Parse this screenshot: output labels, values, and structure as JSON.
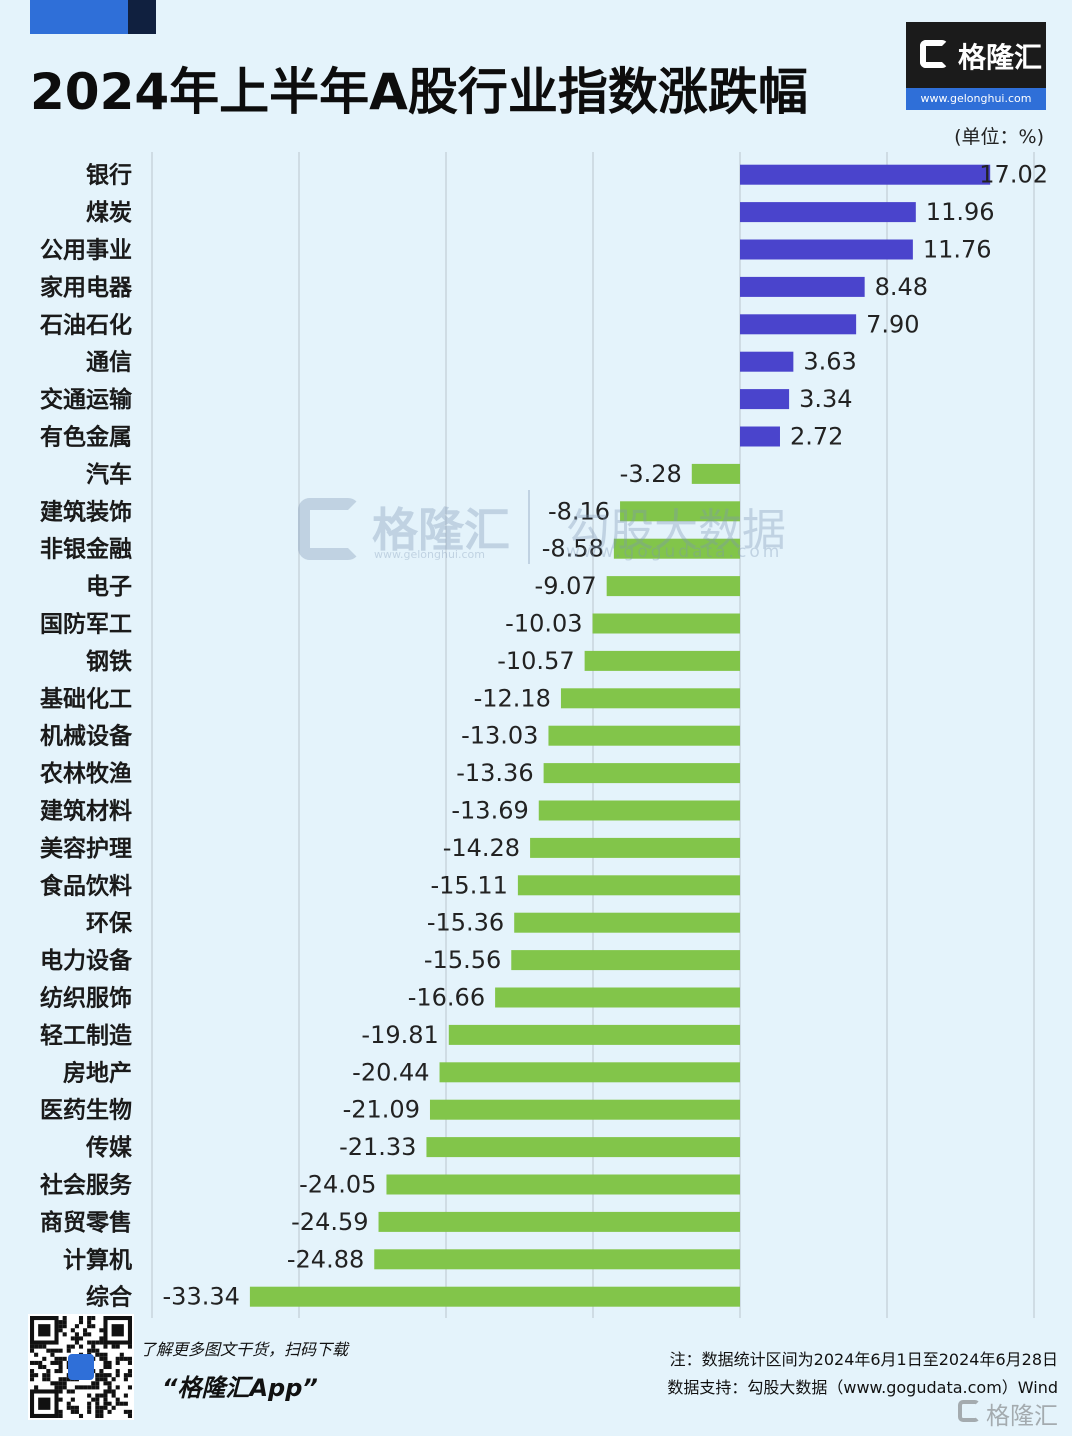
{
  "header": {
    "title": "2024年上半年A股行业指数涨跌幅",
    "unit": "(单位：%)"
  },
  "logo": {
    "brand": "格隆汇",
    "url": "www.gelonghui.com"
  },
  "watermark": {
    "brand": "格隆汇",
    "url": "www.gelonghui.com",
    "brand2": "勾股大数据",
    "url2": "www.gogudata.com"
  },
  "colors": {
    "positive": "#4a44cc",
    "negative": "#82c54a",
    "grid": "#c8d4dc",
    "background": "#e4f3fb"
  },
  "chart_data": {
    "type": "bar",
    "orientation": "horizontal",
    "title": "2024年上半年A股行业指数涨跌幅",
    "unit": "(单位：%)",
    "xlim": [
      -40,
      20
    ],
    "grid": true,
    "categories": [
      "银行",
      "煤炭",
      "公用事业",
      "家用电器",
      "石油石化",
      "通信",
      "交通运输",
      "有色金属",
      "汽车",
      "建筑装饰",
      "非银金融",
      "电子",
      "国防军工",
      "钢铁",
      "基础化工",
      "机械设备",
      "农林牧渔",
      "建筑材料",
      "美容护理",
      "食品饮料",
      "环保",
      "电力设备",
      "纺织服饰",
      "轻工制造",
      "房地产",
      "医药生物",
      "传媒",
      "社会服务",
      "商贸零售",
      "计算机",
      "综合"
    ],
    "values": [
      17.02,
      11.96,
      11.76,
      8.48,
      7.9,
      3.63,
      3.34,
      2.72,
      -3.28,
      -8.16,
      -8.58,
      -9.07,
      -10.03,
      -10.57,
      -12.18,
      -13.03,
      -13.36,
      -13.69,
      -14.28,
      -15.11,
      -15.36,
      -15.56,
      -16.66,
      -19.81,
      -20.44,
      -21.09,
      -21.33,
      -24.05,
      -24.59,
      -24.88,
      -33.34
    ],
    "labels": [
      "17.02",
      "11.96",
      "11.76",
      "8.48",
      "7.90",
      "3.63",
      "3.34",
      "2.72",
      "-3.28",
      "-8.16",
      "-8.58",
      "-9.07",
      "-10.03",
      "-10.57",
      "-12.18",
      "-13.03",
      "-13.36",
      "-13.69",
      "-14.28",
      "-15.11",
      "-15.36",
      "-15.56",
      "-16.66",
      "-19.81",
      "-20.44",
      "-21.09",
      "-21.33",
      "-24.05",
      "-24.59",
      "-24.88",
      "-33.34"
    ]
  },
  "footer": {
    "promo_line1": "了解更多图文干货，扫码下载",
    "promo_line2": "“格隆汇App”",
    "note": "注：数据统计区间为2024年6月1日至2024年6月28日",
    "source": "数据支持：勾股大数据（www.gogudata.com）Wind",
    "corner_brand": "格隆汇"
  }
}
